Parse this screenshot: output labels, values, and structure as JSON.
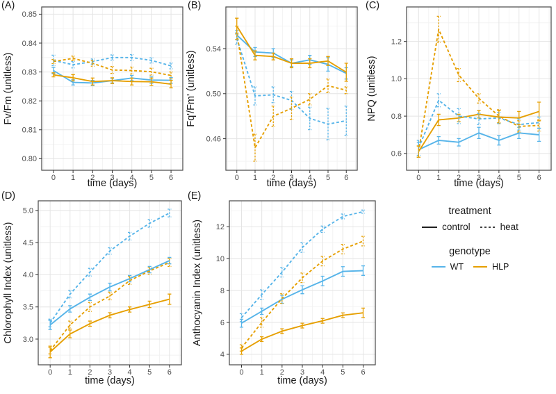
{
  "colors": {
    "WT": "#56B4E9",
    "HLP": "#E69F00",
    "axis_text": "#4d4d4d",
    "title_text": "#1a1a1a",
    "panel_border": "#474747",
    "grid_major": "#e4e4e4",
    "grid_minor": "#f2f2f2",
    "legend_line": "#000000"
  },
  "legend": {
    "treatment": {
      "title": "treatment",
      "items": [
        {
          "label": "control",
          "linetype": "solid"
        },
        {
          "label": "heat",
          "linetype": "dashed"
        }
      ]
    },
    "genotype": {
      "title": "genotype",
      "items": [
        {
          "label": "WT",
          "color": "#56B4E9"
        },
        {
          "label": "HLP",
          "color": "#E69F00"
        }
      ]
    }
  },
  "chart_data": [
    {
      "type": "line",
      "tag": "(A)",
      "xlabel": "time (days)",
      "ylabel": "Fv/Fm (unitless)",
      "x": [
        0,
        1,
        2,
        3,
        4,
        5,
        6
      ],
      "xtick_labels": [
        "0",
        "1",
        "2",
        "3",
        "4",
        "5",
        "6"
      ],
      "xlim": [
        -0.6,
        6.6
      ],
      "ylim": [
        0.796,
        0.8525
      ],
      "yticks": [
        0.8,
        0.81,
        0.82,
        0.83,
        0.84,
        0.85
      ],
      "ytick_labels": [
        "0.80",
        "0.81",
        "0.82",
        "0.83",
        "0.84",
        "0.85"
      ],
      "grid": true,
      "series": [
        {
          "name": "WT control",
          "genotype": "WT",
          "treatment": "control",
          "values": [
            0.8305,
            0.8264,
            0.8262,
            0.827,
            0.8279,
            0.8272,
            0.8271
          ],
          "errors": [
            0.0011,
            0.0009,
            0.0009,
            0.0008,
            0.0009,
            0.0011,
            0.001
          ]
        },
        {
          "name": "HLP control",
          "genotype": "HLP",
          "treatment": "control",
          "values": [
            0.829,
            0.828,
            0.8267,
            0.827,
            0.8267,
            0.8266,
            0.8258
          ],
          "errors": [
            0.0007,
            0.0011,
            0.0012,
            0.001,
            0.0012,
            0.0013,
            0.0013
          ]
        },
        {
          "name": "WT heat",
          "genotype": "WT",
          "treatment": "heat",
          "values": [
            0.834,
            0.8325,
            0.8336,
            0.835,
            0.835,
            0.834,
            0.8321
          ],
          "errors": [
            0.0018,
            0.0011,
            0.0009,
            0.0009,
            0.001,
            0.0009,
            0.001
          ]
        },
        {
          "name": "HLP heat",
          "genotype": "HLP",
          "treatment": "heat",
          "values": [
            0.8336,
            0.8347,
            0.833,
            0.8307,
            0.8305,
            0.8301,
            0.8288
          ],
          "errors": [
            0.0007,
            0.0008,
            0.001,
            0.0012,
            0.0012,
            0.0012,
            0.0012
          ]
        }
      ]
    },
    {
      "type": "line",
      "tag": "(B)",
      "xlabel": "time (days)",
      "ylabel": "Fq'/Fm' (unitless)",
      "x": [
        0,
        1,
        2,
        3,
        4,
        5,
        6
      ],
      "xtick_labels": [
        "0",
        "1",
        "2",
        "3",
        "4",
        "5",
        "6"
      ],
      "xlim": [
        -0.6,
        6.6
      ],
      "ylim": [
        0.432,
        0.577
      ],
      "yticks": [
        0.46,
        0.5,
        0.54
      ],
      "ytick_labels": [
        "0.46",
        "0.50",
        "0.54"
      ],
      "grid": true,
      "series": [
        {
          "name": "WT control",
          "genotype": "WT",
          "treatment": "control",
          "values": [
            0.552,
            0.537,
            0.536,
            0.527,
            0.53,
            0.526,
            0.518
          ],
          "errors": [
            0.004,
            0.004,
            0.004,
            0.003,
            0.004,
            0.006,
            0.005
          ]
        },
        {
          "name": "HLP control",
          "genotype": "HLP",
          "treatment": "control",
          "values": [
            0.56,
            0.534,
            0.533,
            0.527,
            0.527,
            0.529,
            0.519
          ],
          "errors": [
            0.007,
            0.004,
            0.003,
            0.004,
            0.004,
            0.004,
            0.008
          ]
        },
        {
          "name": "WT heat",
          "genotype": "WT",
          "treatment": "heat",
          "values": [
            0.549,
            0.498,
            0.499,
            0.494,
            0.478,
            0.473,
            0.476
          ],
          "errors": [
            0.005,
            0.008,
            0.007,
            0.008,
            0.01,
            0.014,
            0.013
          ]
        },
        {
          "name": "HLP heat",
          "genotype": "HLP",
          "treatment": "heat",
          "values": [
            0.554,
            0.452,
            0.48,
            0.487,
            0.495,
            0.507,
            0.503
          ],
          "errors": [
            0.006,
            0.012,
            0.009,
            0.01,
            0.005,
            0.006,
            0.003
          ]
        }
      ]
    },
    {
      "type": "line",
      "tag": "(C)",
      "xlabel": "time (days)",
      "ylabel": "NPQ (unitless)",
      "x": [
        0,
        1,
        2,
        3,
        4,
        5,
        6
      ],
      "xtick_labels": [
        "0",
        "1",
        "2",
        "3",
        "4",
        "5",
        "6"
      ],
      "xlim": [
        -0.6,
        6.6
      ],
      "ylim": [
        0.51,
        1.385
      ],
      "yticks": [
        0.6,
        0.8,
        1.0,
        1.2
      ],
      "ytick_labels": [
        "0.6",
        "0.8",
        "1.0",
        "1.2"
      ],
      "grid": true,
      "series": [
        {
          "name": "WT control",
          "genotype": "WT",
          "treatment": "control",
          "values": [
            0.62,
            0.67,
            0.66,
            0.71,
            0.67,
            0.71,
            0.7
          ],
          "errors": [
            0.04,
            0.02,
            0.02,
            0.03,
            0.025,
            0.03,
            0.035
          ]
        },
        {
          "name": "HLP control",
          "genotype": "HLP",
          "treatment": "control",
          "values": [
            0.61,
            0.78,
            0.79,
            0.81,
            0.795,
            0.79,
            0.825
          ],
          "errors": [
            0.03,
            0.03,
            0.02,
            0.02,
            0.035,
            0.035,
            0.05
          ]
        },
        {
          "name": "WT heat",
          "genotype": "WT",
          "treatment": "heat",
          "values": [
            0.63,
            0.885,
            0.8,
            0.785,
            0.79,
            0.755,
            0.765
          ],
          "errors": [
            0.04,
            0.035,
            0.04,
            0.03,
            0.03,
            0.03,
            0.03
          ]
        },
        {
          "name": "HLP heat",
          "genotype": "HLP",
          "treatment": "heat",
          "values": [
            0.61,
            1.265,
            1.02,
            0.895,
            0.8,
            0.745,
            0.75
          ],
          "errors": [
            0.03,
            0.07,
            0.035,
            0.025,
            0.035,
            0.03,
            0.03
          ]
        }
      ]
    },
    {
      "type": "line",
      "tag": "(D)",
      "xlabel": "time (days)",
      "ylabel": "Chlorophyll Index (unitless)",
      "x": [
        0,
        1,
        2,
        3,
        4,
        5,
        6
      ],
      "xtick_labels": [
        "0",
        "1",
        "2",
        "3",
        "4",
        "5",
        "6"
      ],
      "xlim": [
        -0.6,
        6.6
      ],
      "ylim": [
        2.6,
        5.15
      ],
      "yticks": [
        3.0,
        3.5,
        4.0,
        4.5,
        5.0
      ],
      "ytick_labels": [
        "3.0",
        "3.5",
        "4.0",
        "4.5",
        "5.0"
      ],
      "grid": true,
      "series": [
        {
          "name": "WT control",
          "genotype": "WT",
          "treatment": "control",
          "values": [
            3.22,
            3.47,
            3.65,
            3.81,
            3.94,
            4.08,
            4.22
          ],
          "errors": [
            0.07,
            0.05,
            0.05,
            0.06,
            0.05,
            0.05,
            0.05
          ]
        },
        {
          "name": "HLP control",
          "genotype": "HLP",
          "treatment": "control",
          "values": [
            2.8,
            3.08,
            3.24,
            3.37,
            3.46,
            3.54,
            3.62
          ],
          "errors": [
            0.09,
            0.06,
            0.04,
            0.04,
            0.04,
            0.05,
            0.08
          ]
        },
        {
          "name": "WT heat",
          "genotype": "WT",
          "treatment": "heat",
          "values": [
            3.25,
            3.7,
            4.04,
            4.37,
            4.6,
            4.8,
            4.96
          ],
          "errors": [
            0.06,
            0.06,
            0.06,
            0.05,
            0.06,
            0.06,
            0.06
          ]
        },
        {
          "name": "HLP heat",
          "genotype": "HLP",
          "treatment": "heat",
          "values": [
            2.82,
            3.22,
            3.5,
            3.67,
            3.91,
            4.06,
            4.19
          ],
          "errors": [
            0.05,
            0.06,
            0.07,
            0.06,
            0.06,
            0.05,
            0.06
          ]
        }
      ]
    },
    {
      "type": "line",
      "tag": "(E)",
      "xlabel": "time (days)",
      "ylabel": "Anthocyanin Index (unitless)",
      "x": [
        0,
        1,
        2,
        3,
        4,
        5,
        6
      ],
      "xtick_labels": [
        "0",
        "1",
        "2",
        "3",
        "4",
        "5",
        "6"
      ],
      "xlim": [
        -0.6,
        6.6
      ],
      "ylim": [
        3.34,
        13.63
      ],
      "yticks": [
        4,
        6,
        8,
        10,
        12
      ],
      "ytick_labels": [
        "4",
        "6",
        "8",
        "10",
        "12"
      ],
      "grid": true,
      "series": [
        {
          "name": "WT control",
          "genotype": "WT",
          "treatment": "control",
          "values": [
            5.95,
            6.7,
            7.45,
            8.05,
            8.6,
            9.2,
            9.25
          ],
          "errors": [
            0.25,
            0.2,
            0.25,
            0.25,
            0.3,
            0.3,
            0.3
          ]
        },
        {
          "name": "HLP control",
          "genotype": "HLP",
          "treatment": "control",
          "values": [
            4.2,
            4.95,
            5.45,
            5.8,
            6.1,
            6.45,
            6.6
          ],
          "errors": [
            0.2,
            0.15,
            0.15,
            0.15,
            0.15,
            0.15,
            0.3
          ]
        },
        {
          "name": "WT heat",
          "genotype": "WT",
          "treatment": "heat",
          "values": [
            6.3,
            7.75,
            9.15,
            10.7,
            11.85,
            12.65,
            12.95
          ],
          "errors": [
            0.25,
            0.3,
            0.3,
            0.3,
            0.2,
            0.15,
            0.1
          ]
        },
        {
          "name": "HLP heat",
          "genotype": "HLP",
          "treatment": "heat",
          "values": [
            4.4,
            6.0,
            7.5,
            8.8,
            9.85,
            10.6,
            11.1
          ],
          "errors": [
            0.2,
            0.3,
            0.3,
            0.3,
            0.3,
            0.3,
            0.3
          ]
        }
      ]
    }
  ]
}
